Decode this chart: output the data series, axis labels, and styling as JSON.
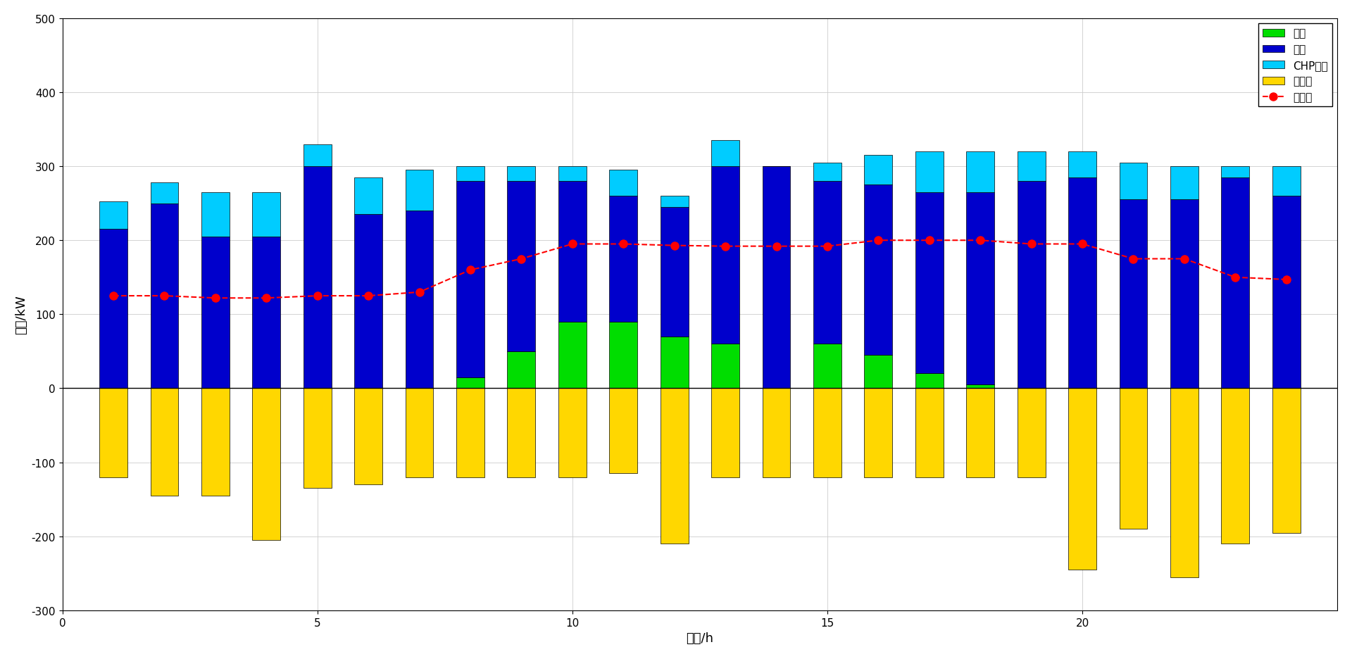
{
  "hours": [
    1,
    2,
    3,
    4,
    5,
    6,
    7,
    8,
    9,
    10,
    11,
    12,
    13,
    14,
    15,
    16,
    17,
    18,
    19,
    20,
    21,
    22,
    23,
    24
  ],
  "pv": [
    0,
    0,
    0,
    0,
    0,
    0,
    0,
    15,
    50,
    90,
    90,
    70,
    60,
    0,
    60,
    45,
    20,
    5,
    0,
    0,
    0,
    0,
    0,
    0
  ],
  "grid": [
    215,
    250,
    205,
    205,
    300,
    235,
    240,
    265,
    230,
    190,
    170,
    175,
    240,
    300,
    220,
    230,
    245,
    260,
    280,
    285,
    255,
    255,
    285,
    260
  ],
  "chp": [
    38,
    28,
    60,
    60,
    30,
    50,
    55,
    20,
    20,
    20,
    35,
    15,
    35,
    0,
    25,
    40,
    55,
    55,
    40,
    35,
    50,
    45,
    15,
    40
  ],
  "boiler": [
    -120,
    -145,
    -145,
    -205,
    -135,
    -130,
    -120,
    -120,
    -120,
    -120,
    -115,
    -210,
    -120,
    -120,
    -120,
    -120,
    -120,
    -120,
    -120,
    -245,
    -190,
    -255,
    -210,
    -195
  ],
  "load": [
    125,
    125,
    122,
    122,
    125,
    125,
    130,
    160,
    175,
    195,
    195,
    193,
    192,
    192,
    192,
    200,
    200,
    200,
    195,
    195,
    175,
    175,
    150,
    147
  ],
  "colors": {
    "pv": "#00DD00",
    "grid": "#0000CC",
    "chp": "#00CCFF",
    "boiler": "#FFD700",
    "load": "#FF0000"
  },
  "ylim": [
    -300,
    500
  ],
  "yticks": [
    -300,
    -200,
    -100,
    0,
    100,
    200,
    300,
    400,
    500
  ],
  "xlim": [
    0,
    25
  ],
  "xlabel": "时段/h",
  "ylabel": "功率/kW",
  "legend_labels": [
    "光伏",
    "电网",
    "CHP机组",
    "电锅炉",
    "电负荷"
  ],
  "bar_width": 0.55,
  "background_color": "#FFFFFF",
  "grid_color": "#CCCCCC",
  "xticks": [
    0,
    5,
    10,
    15,
    20
  ]
}
